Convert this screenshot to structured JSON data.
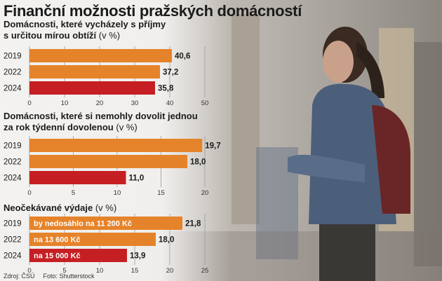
{
  "headline": "Finanční možnosti pražských domácností",
  "source": "Zdroj: ČSÚ",
  "photo_credit": "Foto: Shutterstock",
  "colors": {
    "orange": "#e5832a",
    "red": "#c61f23",
    "grid": "#9a9a9a"
  },
  "chart_data": [
    {
      "type": "bar",
      "orientation": "horizontal",
      "title_line1": "Domácnosti, které vycházely s příjmy",
      "title_line2": "s určitou mírou obtíží",
      "unit": "(v %)",
      "categories": [
        "2019",
        "2022",
        "2024"
      ],
      "values": [
        40.6,
        37.2,
        35.8
      ],
      "value_labels": [
        "40,6",
        "37,2",
        "35,8"
      ],
      "bar_colors": [
        "#e5832a",
        "#e5832a",
        "#c61f23"
      ],
      "bar_notes": [
        "",
        "",
        ""
      ],
      "xlim": [
        0,
        50
      ],
      "xticks": [
        0,
        10,
        20,
        30,
        40,
        50
      ],
      "grid": true
    },
    {
      "type": "bar",
      "orientation": "horizontal",
      "title_line1": "Domácnosti, které si nemohly dovolit jednou",
      "title_line2": "za rok týdenní dovolenou",
      "unit": "(v %)",
      "categories": [
        "2019",
        "2022",
        "2024"
      ],
      "values": [
        19.7,
        18.0,
        11.0
      ],
      "value_labels": [
        "19,7",
        "18,0",
        "11,0"
      ],
      "bar_colors": [
        "#e5832a",
        "#e5832a",
        "#c61f23"
      ],
      "bar_notes": [
        "",
        "",
        ""
      ],
      "xlim": [
        0,
        20
      ],
      "xticks": [
        0,
        5,
        10,
        15,
        20
      ],
      "grid": true
    },
    {
      "type": "bar",
      "orientation": "horizontal",
      "title_line1": "Neočekávané výdaje",
      "title_line2": "",
      "unit": "(v %)",
      "categories": [
        "2019",
        "2022",
        "2024"
      ],
      "values": [
        21.8,
        18.0,
        13.9
      ],
      "value_labels": [
        "21,8",
        "18,0",
        "13,9"
      ],
      "bar_colors": [
        "#e5832a",
        "#e5832a",
        "#c61f23"
      ],
      "bar_notes": [
        "by nedosáhlo na 11 200 Kč",
        "na 13 600 Kč",
        "na 15 000 Kč"
      ],
      "xlim": [
        0,
        25
      ],
      "xticks": [
        0,
        5,
        10,
        15,
        20,
        25
      ],
      "grid": true
    }
  ]
}
